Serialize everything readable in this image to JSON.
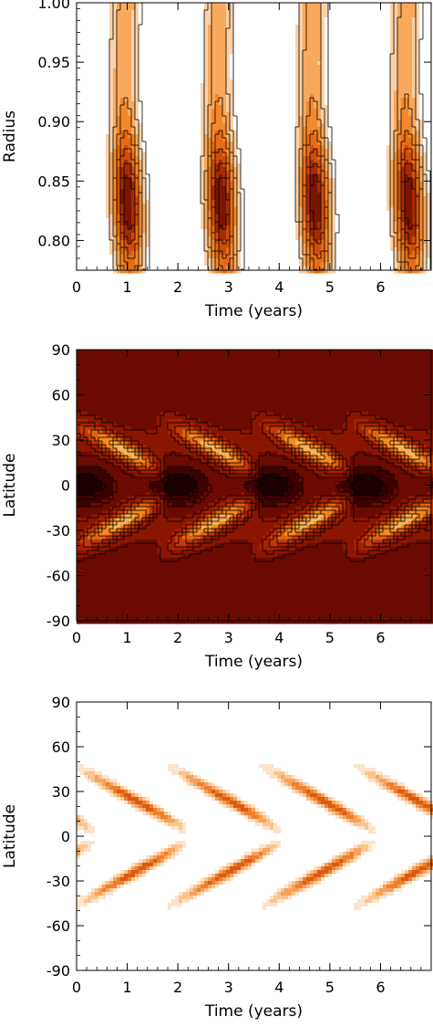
{
  "figure": {
    "colors": {
      "background": "#ffffff",
      "frame": "#000000",
      "contour_line": "#000000",
      "panel2_palette": [
        "#1a0000",
        "#3d0200",
        "#6a0a00",
        "#8a1500",
        "#a52000",
        "#c23a05",
        "#e0630d",
        "#f58a1f",
        "#fbb25a",
        "#ffd9b0"
      ],
      "panel1_palette": [
        "#ffffff",
        "#fcd1a6",
        "#f8a95c",
        "#f3882c",
        "#e86b14",
        "#cf4c0a",
        "#a52b05",
        "#7a1502"
      ],
      "panel3_palette": [
        "#ffffff",
        "#fde3cc",
        "#fbc48f",
        "#f6a25a",
        "#ed7f2e",
        "#d95b14",
        "#b2380a",
        "#8a1c03"
      ]
    }
  },
  "chart_data": [
    {
      "type": "heatmap",
      "title": "",
      "xlabel": "Time (years)",
      "ylabel": "Radius",
      "xlim": [
        0,
        7
      ],
      "ylim": [
        0.775,
        1.0
      ],
      "x_ticks": [
        "0",
        "1",
        "2",
        "3",
        "4",
        "5",
        "6"
      ],
      "y_ticks": [
        "0.80",
        "0.85",
        "0.90",
        "0.95",
        "1.00"
      ],
      "filled_contours": true,
      "contour_lines": true,
      "features": {
        "period_years": 1.85,
        "first_peak_time": 1.0,
        "peak_radius": 0.833,
        "band_halfwidth_years": 0.28
      }
    },
    {
      "type": "heatmap",
      "title": "",
      "xlabel": "Time (years)",
      "ylabel": "Latitude",
      "xlim": [
        0,
        7
      ],
      "ylim": [
        -90,
        90
      ],
      "x_ticks": [
        "0",
        "1",
        "2",
        "3",
        "4",
        "5",
        "6"
      ],
      "y_ticks": [
        "-90",
        "-60",
        "-30",
        "0",
        "30",
        "60",
        "90"
      ],
      "filled_contours": true,
      "contour_lines": true,
      "features": {
        "period_years": 1.85,
        "wing_start_latitude": 45,
        "wing_end_latitude": 8,
        "wing_duration_years": 2.1
      }
    },
    {
      "type": "heatmap",
      "title": "",
      "xlabel": "Time (years)",
      "ylabel": "Latitude",
      "xlim": [
        0,
        7
      ],
      "ylim": [
        -90,
        90
      ],
      "x_ticks": [
        "0",
        "1",
        "2",
        "3",
        "4",
        "5",
        "6"
      ],
      "y_ticks": [
        "-90",
        "-60",
        "-30",
        "0",
        "30",
        "60",
        "90"
      ],
      "filled_contours": true,
      "contour_lines": false,
      "features": {
        "period_years": 1.85,
        "wing_start_latitude": 52,
        "wing_end_latitude": 2,
        "wing_duration_years": 2.6
      }
    }
  ]
}
